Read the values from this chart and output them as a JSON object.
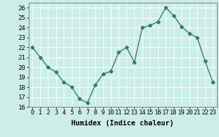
{
  "x": [
    0,
    1,
    2,
    3,
    4,
    5,
    6,
    7,
    8,
    9,
    10,
    11,
    12,
    13,
    14,
    15,
    16,
    17,
    18,
    19,
    20,
    21,
    22,
    23
  ],
  "y": [
    22.0,
    21.0,
    20.0,
    19.5,
    18.5,
    18.0,
    16.8,
    16.4,
    18.2,
    19.3,
    19.6,
    21.5,
    22.0,
    20.5,
    24.0,
    24.2,
    24.6,
    26.0,
    25.2,
    24.1,
    23.4,
    23.0,
    20.6,
    18.5
  ],
  "line_color": "#2d7d6e",
  "marker": "D",
  "marker_size": 2.5,
  "bg_color": "#cceee8",
  "grid_color": "#ffffff",
  "xlabel": "Humidex (Indice chaleur)",
  "xlim": [
    -0.5,
    23.5
  ],
  "ylim": [
    16,
    26.5
  ],
  "xticks": [
    0,
    1,
    2,
    3,
    4,
    5,
    6,
    7,
    8,
    9,
    10,
    11,
    12,
    13,
    14,
    15,
    16,
    17,
    18,
    19,
    20,
    21,
    22,
    23
  ],
  "yticks": [
    16,
    17,
    18,
    19,
    20,
    21,
    22,
    23,
    24,
    25,
    26
  ],
  "xlabel_fontsize": 7.5,
  "tick_fontsize": 6.5,
  "linewidth": 1.0
}
